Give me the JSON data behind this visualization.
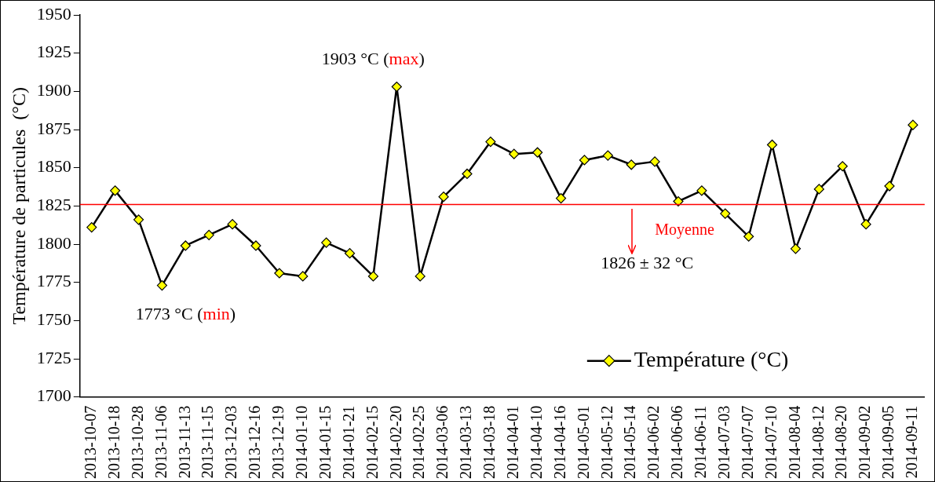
{
  "chart_data": {
    "type": "line",
    "ylabel": "Température de particules  (°C)",
    "categories": [
      "2013-10-07",
      "2013-10-18",
      "2013-10-28",
      "2013-11-06",
      "2013-11-13",
      "2013-11-15",
      "2013-12-03",
      "2013-12-16",
      "2013-12-19",
      "2014-01-10",
      "2014-01-15",
      "2014-01-21",
      "2014-02-15",
      "2014-02-20",
      "2014-02-25",
      "2014-03-06",
      "2014-03-13",
      "2014-03-18",
      "2014-04-01",
      "2014-04-10",
      "2014-04-16",
      "2014-05-01",
      "2014-05-12",
      "2014-05-14",
      "2014-06-02",
      "2014-06-06",
      "2014-06-11",
      "2014-07-03",
      "2014-07-07",
      "2014-07-10",
      "2014-08-04",
      "2014-08-12",
      "2014-08-20",
      "2014-09-02",
      "2014-09-05",
      "2014-09-11"
    ],
    "series": [
      {
        "name": "Température (°C)",
        "color": "#000000",
        "values": [
          1811,
          1835,
          1816,
          1773,
          1799,
          1806,
          1813,
          1799,
          1781,
          1779,
          1801,
          1794,
          1779,
          1903,
          1779,
          1831,
          1846,
          1867,
          1859,
          1860,
          1830,
          1855,
          1858,
          1852,
          1854,
          1828,
          1835,
          1820,
          1805,
          1865,
          1797,
          1836,
          1851,
          1813,
          1838,
          1878
        ]
      }
    ],
    "marker": "diamond",
    "ylim": [
      1700,
      1950
    ],
    "yticks": [
      1700,
      1725,
      1750,
      1775,
      1800,
      1825,
      1850,
      1875,
      1900,
      1925,
      1950
    ],
    "grid": false,
    "legend": "bottom right",
    "ref_lines": [
      {
        "axis": "y",
        "value": 1826,
        "label": "Moyenne",
        "color": "#ff0000"
      }
    ],
    "annotations": [
      {
        "text": "1903 °C (max)",
        "x": "2014-02-20",
        "y": 1903
      },
      {
        "text": "1773 °C (min)",
        "x": "2013-11-06",
        "y": 1773
      },
      {
        "text": "1826 ± 32 °C",
        "x": "2014-05-14",
        "y": 1826
      }
    ]
  }
}
